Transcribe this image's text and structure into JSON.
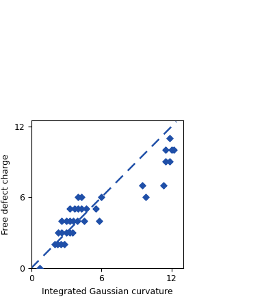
{
  "chart_data": {
    "type": "scatter",
    "x_label": "Integrated Gaussian curvature",
    "y_label": "Free defect charge",
    "xlim": [
      0,
      13
    ],
    "ylim": [
      0,
      12.5
    ],
    "xticks": [
      0,
      6,
      12
    ],
    "yticks": [
      0,
      6,
      12
    ],
    "series": [
      {
        "type": "scatter",
        "color": "#1f4fa8",
        "marker": "diamond",
        "x": [
          0.7,
          2.0,
          2.2,
          2.5,
          2.8,
          2.3,
          2.6,
          3.0,
          3.3,
          3.5,
          2.6,
          3.0,
          3.3,
          3.6,
          3.9,
          4.5,
          3.3,
          3.7,
          4.0,
          4.3,
          4.7,
          4.0,
          4.3,
          5.5,
          5.8,
          6.0,
          9.5,
          9.8,
          11.3,
          11.5,
          11.8,
          12.0,
          11.5,
          11.8,
          12.2
        ],
        "values": [
          0,
          2,
          2,
          2,
          2,
          3,
          3,
          3,
          3,
          3,
          4,
          4,
          4,
          4,
          4,
          4,
          5,
          5,
          5,
          5,
          5,
          6,
          6,
          5,
          4,
          6,
          7,
          6,
          7,
          9,
          9,
          10,
          10,
          11,
          10
        ]
      },
      {
        "type": "line",
        "color": "#1f4fa8",
        "line_style": "dashed",
        "x": [
          0,
          12.4
        ],
        "values": [
          0,
          12.4
        ]
      }
    ]
  }
}
